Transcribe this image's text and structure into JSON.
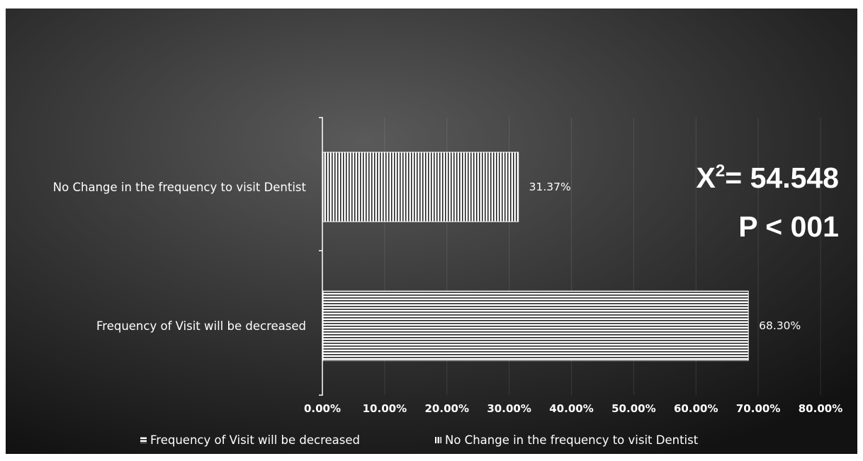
{
  "colors": {
    "background_center": "#5a5a5a",
    "background_edge": "#121212",
    "bar_fill": "#ffffff",
    "stripe": "#1a1a1a",
    "text": "#ffffff"
  },
  "annotation": {
    "chi_prefix": "X",
    "chi_superscript": "2",
    "chi_value": "= 54.548",
    "p_value": "P < 001"
  },
  "chart_data": {
    "type": "bar",
    "orientation": "horizontal",
    "title": "",
    "xlabel": "",
    "ylabel": "",
    "categories": [
      "No Change in the frequency to visit Dentist",
      "Frequency of Visit will be decreased"
    ],
    "values": [
      31.37,
      68.3
    ],
    "value_labels": [
      "31.37%",
      "68.30%"
    ],
    "patterns": [
      "vertical-stripes",
      "horizontal-stripes"
    ],
    "xlim": [
      0,
      80
    ],
    "x_ticks": [
      0,
      10,
      20,
      30,
      40,
      50,
      60,
      70,
      80
    ],
    "x_tick_labels": [
      "0.00%",
      "10.00%",
      "20.00%",
      "30.00%",
      "40.00%",
      "50.00%",
      "60.00%",
      "70.00%",
      "80.00%"
    ],
    "grid": true,
    "legend_position": "bottom",
    "legend": [
      {
        "label": "Frequency of Visit will be decreased",
        "pattern": "horizontal-stripes"
      },
      {
        "label": "No Change in the frequency to visit Dentist",
        "pattern": "vertical-stripes"
      }
    ]
  }
}
